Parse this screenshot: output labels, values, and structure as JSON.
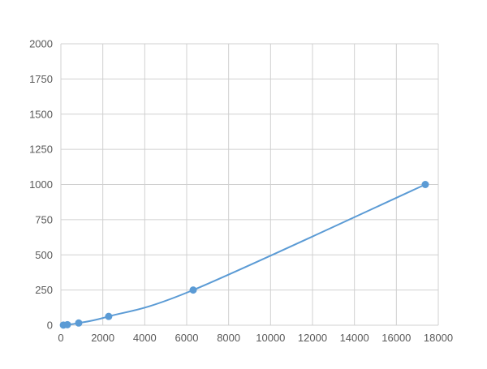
{
  "chart_data": {
    "type": "scatter",
    "title": "",
    "xlabel": "",
    "ylabel": "",
    "xlim": [
      0,
      18000
    ],
    "ylim": [
      0,
      2000
    ],
    "xticks": [
      0,
      2000,
      4000,
      6000,
      8000,
      10000,
      12000,
      14000,
      16000,
      18000
    ],
    "yticks": [
      0,
      250,
      500,
      750,
      1000,
      1250,
      1500,
      1750,
      2000
    ],
    "grid": true,
    "smooth_line": true,
    "series": [
      {
        "x": [
          120,
          310,
          850,
          2280,
          6310,
          17380
        ],
        "y": [
          0.98,
          3.9,
          15.6,
          62.5,
          250,
          1000
        ],
        "color": "#5b9bd5"
      }
    ]
  }
}
